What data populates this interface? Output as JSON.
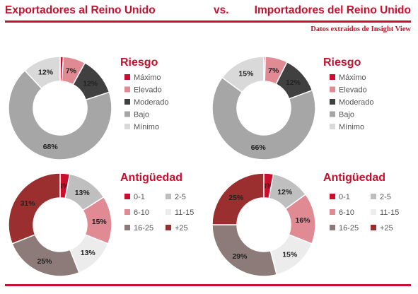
{
  "header": {
    "left_title": "Exportadores al Reino Unido",
    "vs": "vs.",
    "right_title": "Importadores del Reino Unido",
    "source": "Datos extraídos de Insight View"
  },
  "colors": {
    "accent": "#c8102e",
    "legend_text": "#555555",
    "label_text": "#222222"
  },
  "chart_data": [
    {
      "type": "pie",
      "style": "donut",
      "group": "Exportadores al Reino Unido",
      "title": "Riesgo",
      "categories": [
        "Máximo",
        "Elevado",
        "Moderado",
        "Bajo",
        "Mínimo"
      ],
      "values": [
        1,
        7,
        12,
        68,
        12
      ],
      "data_labels": [
        "",
        "7%",
        "12%",
        "68%",
        "12%"
      ],
      "colors": [
        "#c8102e",
        "#e08a94",
        "#404040",
        "#a6a6a6",
        "#d9d9d9"
      ],
      "legend_columns": 1
    },
    {
      "type": "pie",
      "style": "donut",
      "group": "Importadores del Reino Unido",
      "title": "Riesgo",
      "categories": [
        "Máximo",
        "Elevado",
        "Moderado",
        "Bajo",
        "Mínimo"
      ],
      "values": [
        0.5,
        7,
        12,
        66,
        15
      ],
      "data_labels": [
        "",
        "7%",
        "12%",
        "66%",
        "15%"
      ],
      "colors": [
        "#c8102e",
        "#e08a94",
        "#404040",
        "#a6a6a6",
        "#d9d9d9"
      ],
      "legend_columns": 1
    },
    {
      "type": "pie",
      "style": "donut",
      "group": "Exportadores al Reino Unido",
      "title": "Antigüedad",
      "categories": [
        "0-1",
        "2-5",
        "6-10",
        "11-15",
        "16-25",
        "+25"
      ],
      "values": [
        3,
        13,
        15,
        13,
        25,
        31
      ],
      "data_labels": [
        "3%",
        "13%",
        "15%",
        "13%",
        "25%",
        "31%"
      ],
      "colors": [
        "#c8102e",
        "#bfbfbf",
        "#e08a94",
        "#ececec",
        "#8c7b78",
        "#9b2f2f"
      ],
      "legend_columns": 2
    },
    {
      "type": "pie",
      "style": "donut",
      "group": "Importadores del Reino Unido",
      "title": "Antigüedad",
      "categories": [
        "0-1",
        "2-5",
        "6-10",
        "11-15",
        "16-25",
        "+25"
      ],
      "values": [
        3,
        12,
        16,
        15,
        29,
        25
      ],
      "data_labels": [
        "3%",
        "12%",
        "16%",
        "15%",
        "29%",
        "25%"
      ],
      "colors": [
        "#c8102e",
        "#bfbfbf",
        "#e08a94",
        "#ececec",
        "#8c7b78",
        "#9b2f2f"
      ],
      "legend_columns": 2
    }
  ]
}
